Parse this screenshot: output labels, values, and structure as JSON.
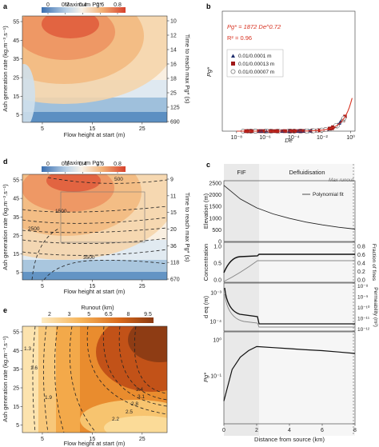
{
  "colors": {
    "cool": "#3a6fb0",
    "light": "#f8f2e8",
    "warm": "#f2b277",
    "hot": "#d7412c",
    "ro_lo": "#fce5b4",
    "ro_hi": "#8a3a12",
    "fit": "#d7301f",
    "navy": "#1b2a6b",
    "darkred": "#a01818"
  },
  "chart_data": [
    {
      "id": "a",
      "panel_label": "a",
      "type": "heatmap",
      "colorbar_label": "Maximum Pg*",
      "colorbar_ticks": [
        "0",
        "0.2",
        "0.4",
        "0.6",
        "0.8"
      ],
      "xlabel": "Flow height at start (m)",
      "ylabel": "Ash generation rate (kg.m⁻³.s⁻¹)",
      "right_label": "Time to reach max Pg* (s)",
      "xticks": [
        "5",
        "15",
        "25"
      ],
      "yticks": [
        "55",
        "45",
        "35",
        "25",
        "15",
        "5"
      ],
      "right_ticks": [
        "10",
        "12",
        "14",
        "16",
        "18",
        "25",
        "125",
        "690"
      ],
      "xlim": [
        1,
        30
      ],
      "ylim": [
        1,
        58
      ],
      "clim": [
        0,
        0.9
      ]
    },
    {
      "id": "b",
      "panel_label": "b",
      "type": "scatter",
      "xlabel": "De",
      "ylabel": "Pg*",
      "xscale": "log",
      "yscale": "linear",
      "xticks": [
        "10⁻⁸",
        "10⁻⁶",
        "10⁻⁴",
        "10⁻²",
        "10⁰"
      ],
      "equation": "Pg* = 1872 De^0.72",
      "r2": "R² = 0.96",
      "series": [
        {
          "name": "0.01/0.0001 m",
          "marker": "triangle"
        },
        {
          "name": "0.01/0.00013 m",
          "marker": "square"
        },
        {
          "name": "0.01/0.00007 m",
          "marker": "circle"
        }
      ],
      "fit": {
        "a": 1872,
        "b": 0.72
      }
    },
    {
      "id": "d",
      "panel_label": "d",
      "type": "heatmap",
      "colorbar_label": "Maximum Pg*",
      "colorbar_ticks": [
        "0",
        "0.2",
        "0.4",
        "0.6",
        "0.8"
      ],
      "xlabel": "Flow height at start (m)",
      "ylabel": "Ash generation rate (kg.m⁻³.s⁻¹)",
      "right_label": "Time to reach max Pg* (s)",
      "xticks": [
        "5",
        "15",
        "25"
      ],
      "yticks": [
        "55",
        "45",
        "35",
        "25",
        "15",
        "5"
      ],
      "right_ticks": [
        "9",
        "11",
        "15",
        "20",
        "36",
        "118",
        "670"
      ],
      "contour_labels": [
        "500",
        "1500",
        "2500",
        "3500"
      ],
      "xlim": [
        1,
        30
      ],
      "ylim": [
        1,
        58
      ],
      "clim": [
        0,
        0.9
      ]
    },
    {
      "id": "c",
      "panel_label": "c",
      "type": "line",
      "xlabel": "Distance from source (km)",
      "xticks": [
        "0",
        "2",
        "4",
        "6",
        "8"
      ],
      "xlim": [
        0,
        8
      ],
      "regions": [
        "FIF",
        "Defluidisation"
      ],
      "max_runout_label": "Max runout",
      "legend": "Polynomial fit",
      "subplots": [
        {
          "ylabel": "Elevation (m)",
          "yticks": [
            "2500",
            "2000",
            "1500",
            "1000",
            "500",
            "0"
          ],
          "ylim": [
            0,
            2600
          ],
          "x": [
            0,
            1,
            2,
            3,
            4,
            5,
            6,
            7,
            8
          ],
          "y": [
            2400,
            1820,
            1440,
            1180,
            990,
            830,
            710,
            610,
            530
          ]
        },
        {
          "ylabel": "Concentration",
          "yticks": [
            "1.0",
            "0.5",
            "0.0"
          ],
          "right_label": "Fraction of fines",
          "right_ticks": [
            "0.8",
            "0.6",
            "0.4",
            "0.2",
            "0.0"
          ]
        },
        {
          "ylabel": "d eq (m)",
          "yticks": [
            "10⁻³",
            "10⁻⁴"
          ],
          "right_label": "Permeability (m²)",
          "right_ticks": [
            "10⁻⁸",
            "10⁻⁹",
            "10⁻¹⁰",
            "10⁻¹¹",
            "10⁻¹²"
          ]
        },
        {
          "ylabel": "Pg*",
          "yticks": [
            "10⁰",
            "10⁻¹"
          ],
          "x": [
            0,
            0.5,
            1,
            1.5,
            2,
            3,
            4,
            5,
            6,
            7,
            8
          ],
          "y": [
            0.02,
            0.15,
            0.33,
            0.5,
            0.65,
            0.61,
            0.57,
            0.53,
            0.5,
            0.46,
            0.42
          ]
        }
      ]
    },
    {
      "id": "e",
      "panel_label": "e",
      "type": "heatmap",
      "colorbar_label": "Runout (km)",
      "colorbar_ticks": [
        "2",
        "3",
        "5",
        "6.5",
        "8",
        "9.5"
      ],
      "xlabel": "Flow height at start (m)",
      "ylabel": "Ash generation rate (kg.m⁻³.s⁻¹)",
      "xticks": [
        "5",
        "15",
        "25"
      ],
      "yticks": [
        "55",
        "45",
        "35",
        "25",
        "15",
        "5"
      ],
      "contour_labels": [
        "1.3",
        "1.6",
        "1.9",
        "2.2",
        "2.5",
        "2.8",
        "3.1",
        "3.4"
      ],
      "xlim": [
        1,
        30
      ],
      "ylim": [
        1,
        58
      ],
      "clim": [
        1,
        10.5
      ]
    }
  ]
}
